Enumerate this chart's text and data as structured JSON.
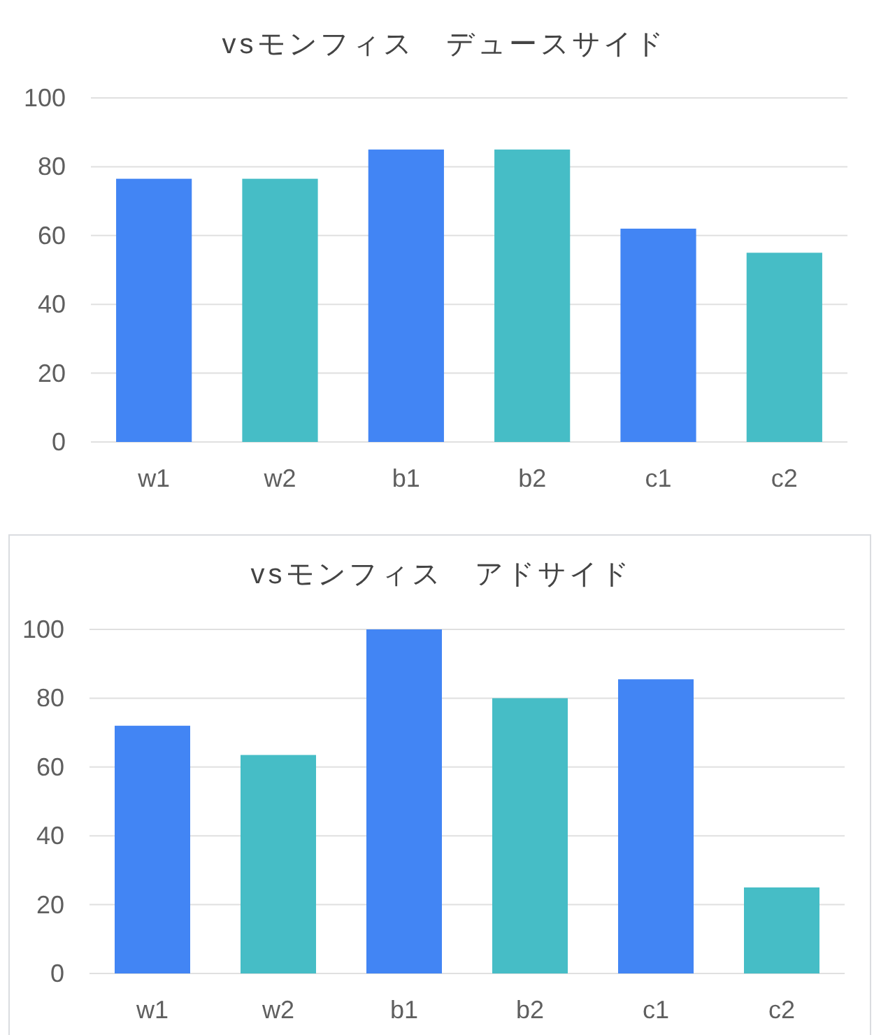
{
  "chart_data": [
    {
      "type": "bar",
      "title": "vsモンフィス　デュースサイド",
      "categories": [
        "w1",
        "w2",
        "b1",
        "b2",
        "c1",
        "c2"
      ],
      "values": [
        76.5,
        76.5,
        85,
        85,
        62,
        55
      ],
      "colors": [
        "#4285f4",
        "#46bdc6",
        "#4285f4",
        "#46bdc6",
        "#4285f4",
        "#46bdc6"
      ],
      "ylim": [
        0,
        100
      ],
      "yticks": [
        0,
        20,
        40,
        60,
        80,
        100
      ],
      "grid": "y"
    },
    {
      "type": "bar",
      "title": "vsモンフィス　アドサイド",
      "categories": [
        "w1",
        "w2",
        "b1",
        "b2",
        "c1",
        "c2"
      ],
      "values": [
        72,
        63.5,
        100,
        80,
        85.5,
        25
      ],
      "colors": [
        "#4285f4",
        "#46bdc6",
        "#4285f4",
        "#46bdc6",
        "#4285f4",
        "#46bdc6"
      ],
      "ylim": [
        0,
        100
      ],
      "yticks": [
        0,
        20,
        40,
        60,
        80,
        100
      ],
      "grid": "y"
    }
  ]
}
